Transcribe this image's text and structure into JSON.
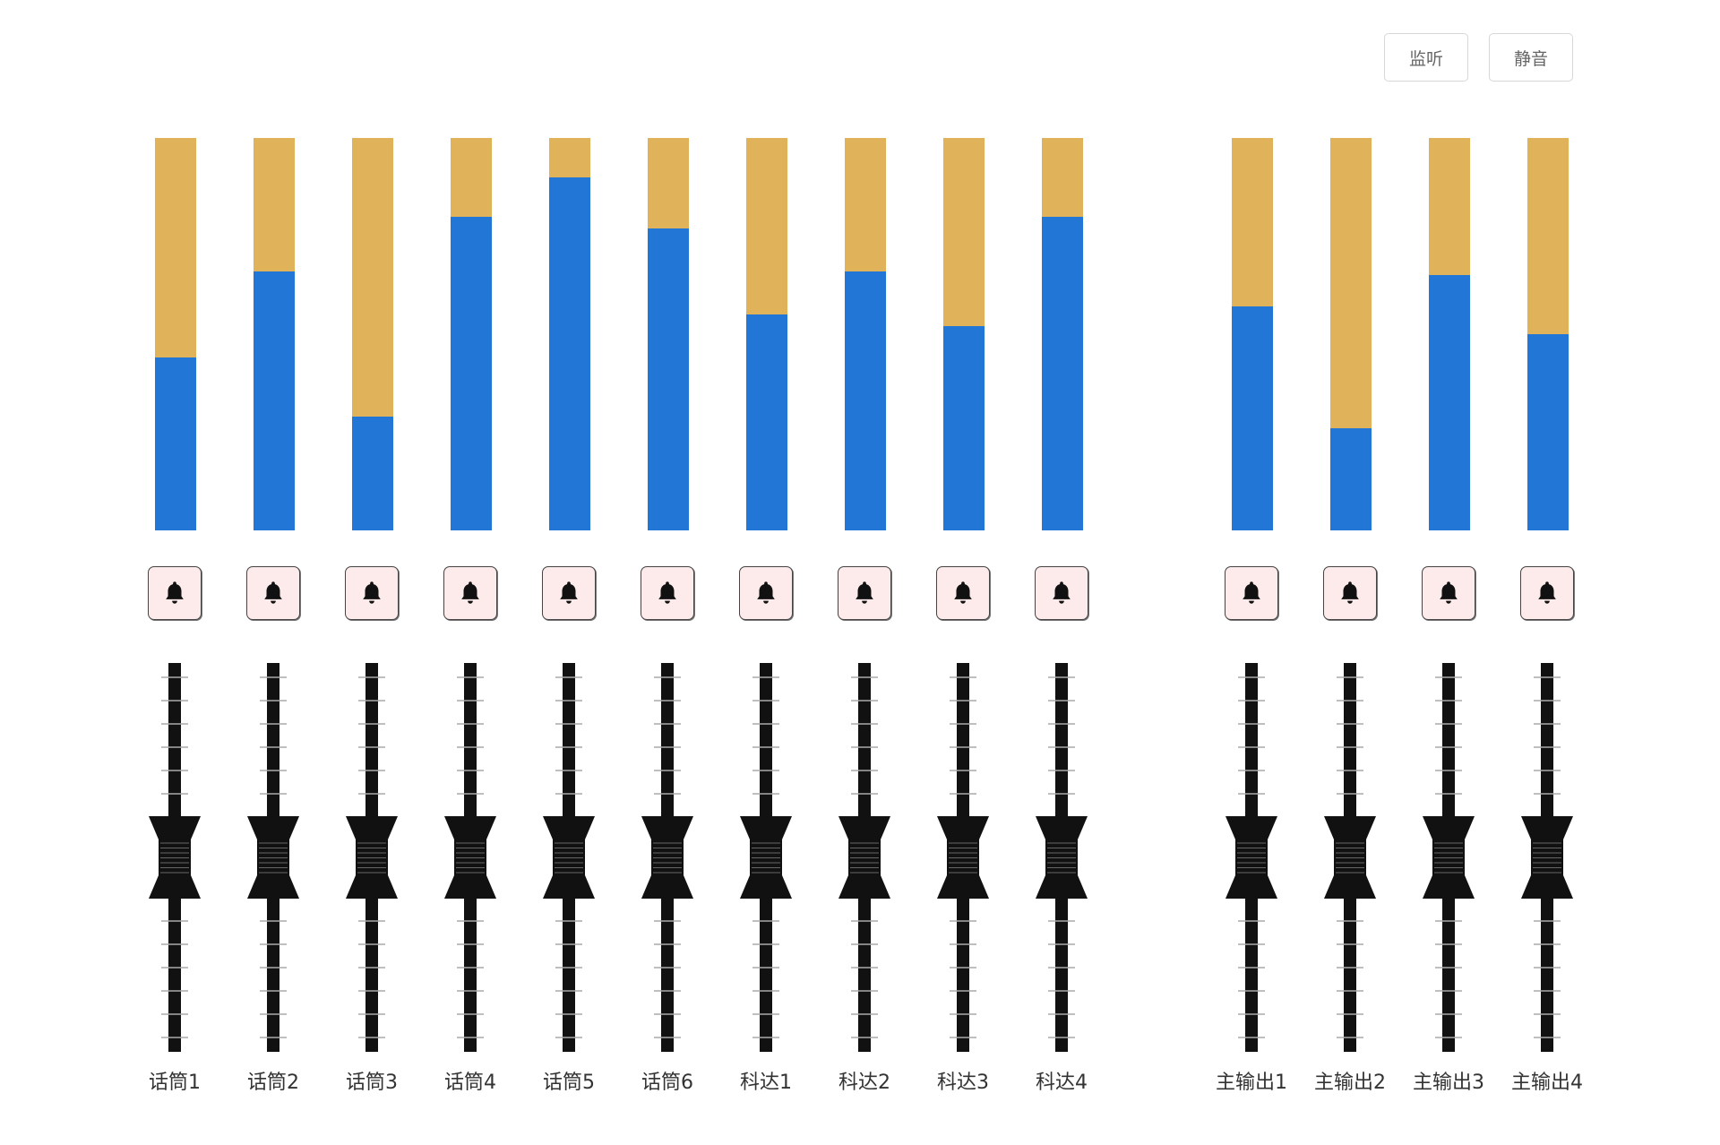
{
  "toolbar": {
    "monitor_label": "监听",
    "mute_label": "静音"
  },
  "colors": {
    "level_fill": "#2277d6",
    "meter_bg": "#e0b35b",
    "bell_bg": "#fdeaea",
    "fader": "#111111"
  },
  "icons": {
    "bell": "bell-icon"
  },
  "channels": [
    {
      "label": "话筒1",
      "level": 0.44,
      "fader": 0.5
    },
    {
      "label": "话筒2",
      "level": 0.66,
      "fader": 0.5
    },
    {
      "label": "话筒3",
      "level": 0.29,
      "fader": 0.5
    },
    {
      "label": "话筒4",
      "level": 0.8,
      "fader": 0.5
    },
    {
      "label": "话筒5",
      "level": 0.9,
      "fader": 0.5
    },
    {
      "label": "话筒6",
      "level": 0.77,
      "fader": 0.5
    },
    {
      "label": "科达1",
      "level": 0.55,
      "fader": 0.5
    },
    {
      "label": "科达2",
      "level": 0.66,
      "fader": 0.5
    },
    {
      "label": "科达3",
      "level": 0.52,
      "fader": 0.5
    },
    {
      "label": "科达4",
      "level": 0.8,
      "fader": 0.5
    }
  ],
  "outputs": [
    {
      "label": "主输出1",
      "level": 0.57,
      "fader": 0.5
    },
    {
      "label": "主输出2",
      "level": 0.26,
      "fader": 0.5
    },
    {
      "label": "主输出3",
      "level": 0.65,
      "fader": 0.5
    },
    {
      "label": "主输出4",
      "level": 0.5,
      "fader": 0.5
    }
  ]
}
